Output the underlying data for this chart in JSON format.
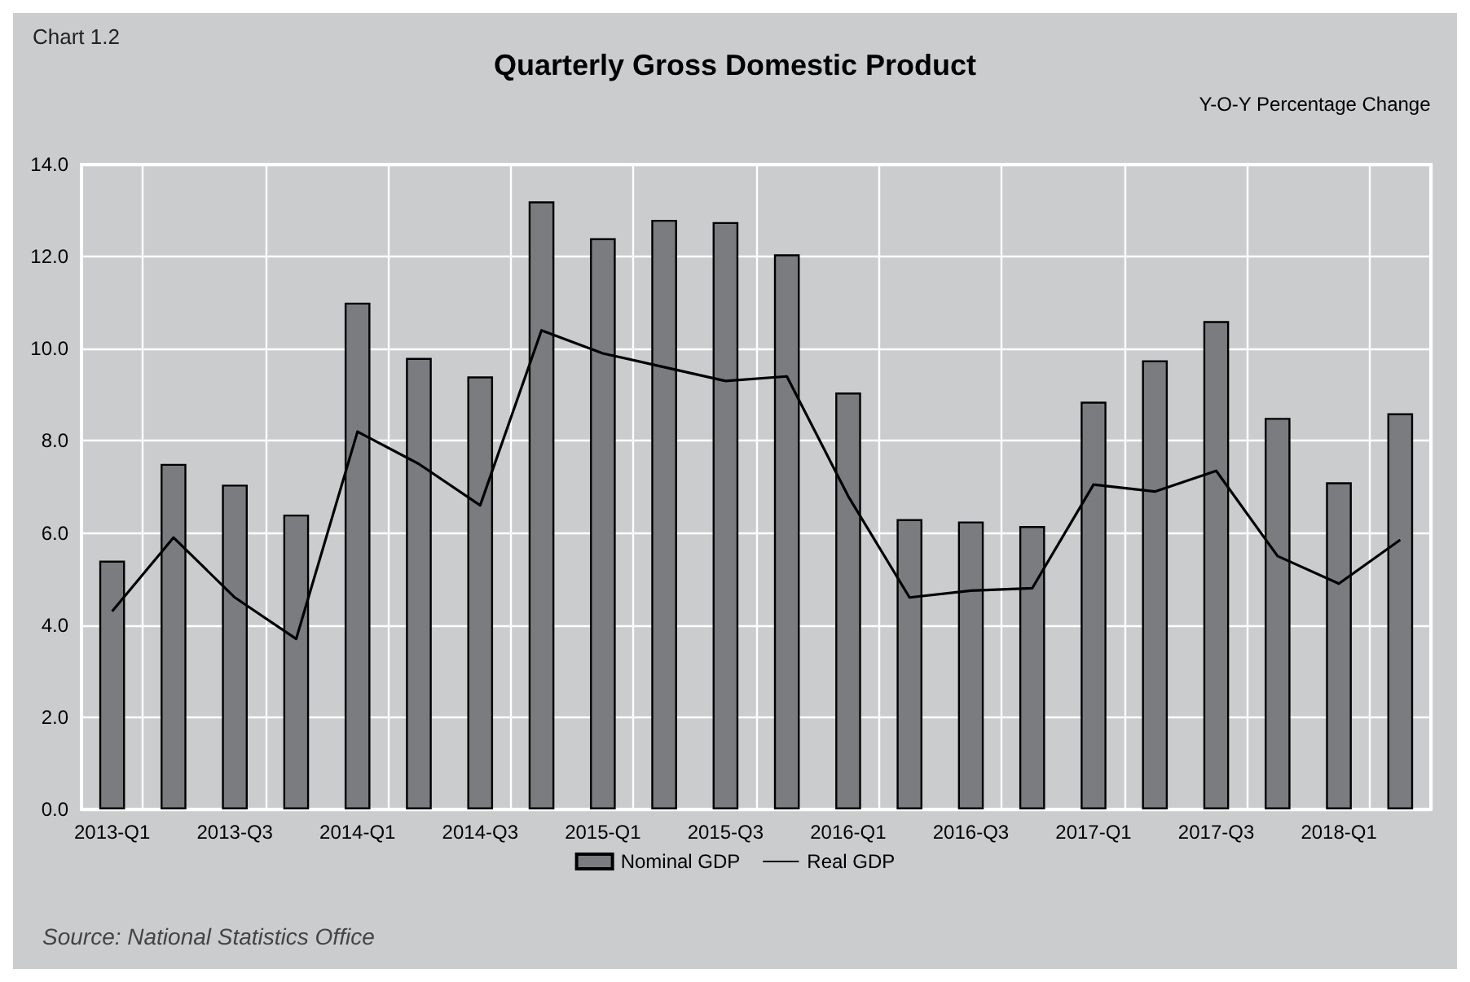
{
  "chart_data": {
    "type": "bar",
    "title": "Quarterly Gross Domestic Product",
    "ylabel": "Y-O-Y Percentage Change",
    "annotations": [
      "Chart 1.2",
      "Source: National Statistics Office"
    ],
    "categories": [
      "2013-Q1",
      null,
      "2013-Q3",
      null,
      "2014-Q1",
      null,
      "2014-Q3",
      null,
      "2015-Q1",
      null,
      "2015-Q3",
      null,
      "2016-Q1",
      null,
      "2016-Q3",
      null,
      "2017-Q1",
      null,
      "2017-Q3",
      null,
      "2018-Q1",
      null
    ],
    "series": [
      {
        "name": "Nominal GDP",
        "color": "#7b7c80",
        "values": [
          5.4,
          7.5,
          7.05,
          6.4,
          11.0,
          9.8,
          9.4,
          13.2,
          12.4,
          12.8,
          12.75,
          12.05,
          9.05,
          6.3,
          6.25,
          6.15,
          8.85,
          9.75,
          10.6,
          8.5,
          7.1,
          8.6
        ]
      },
      {
        "name": "Real GDP",
        "type": "line",
        "color": "#000000",
        "marker": "none",
        "values": [
          4.3,
          5.9,
          4.6,
          3.7,
          8.2,
          7.5,
          6.6,
          10.4,
          9.9,
          9.6,
          9.3,
          9.4,
          6.8,
          4.6,
          4.75,
          4.8,
          7.05,
          6.9,
          7.35,
          5.5,
          4.9,
          5.85
        ]
      }
    ],
    "ylim": [
      0,
      14
    ],
    "yticks": [
      {
        "value": 0,
        "label": "0.0"
      },
      {
        "value": 2,
        "label": "2.0"
      },
      {
        "value": 4,
        "label": "4.0"
      },
      {
        "value": 6,
        "label": "6.0"
      },
      {
        "value": 8,
        "label": "8.0"
      },
      {
        "value": 10,
        "label": "10.0"
      },
      {
        "value": 12,
        "label": "12.0"
      },
      {
        "value": 14,
        "label": "14.0"
      }
    ],
    "grid": true,
    "legend": "bottom"
  }
}
